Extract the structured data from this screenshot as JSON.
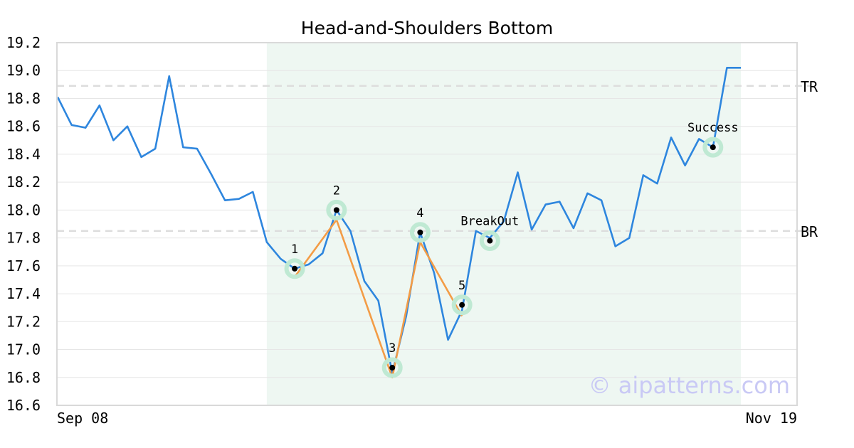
{
  "chart_data": {
    "type": "line",
    "title": "Head-and-Shoulders Bottom",
    "ylim": [
      16.6,
      19.2
    ],
    "y_ticks": [
      "16.6",
      "16.8",
      "17.0",
      "17.2",
      "17.4",
      "17.6",
      "17.8",
      "18.0",
      "18.2",
      "18.4",
      "18.6",
      "18.8",
      "19.0",
      "19.2"
    ],
    "x_tick_labels": [
      "Sep 08",
      "Nov 19"
    ],
    "grid": true,
    "series": [
      {
        "values": [
          18.81,
          18.61,
          18.59,
          18.75,
          18.5,
          18.6,
          18.38,
          18.44,
          18.96,
          18.45,
          18.44,
          18.26,
          18.07,
          18.08,
          18.13,
          17.77,
          17.65,
          17.58,
          17.61,
          17.69,
          18.0,
          17.85,
          17.49,
          17.35,
          16.83,
          17.24,
          17.84,
          17.55,
          17.07,
          17.28,
          17.85,
          17.8,
          17.92,
          18.27,
          17.86,
          18.04,
          18.06,
          17.87,
          18.12,
          18.07,
          17.74,
          17.8,
          18.25,
          18.19,
          18.52,
          18.32,
          18.51,
          18.45,
          19.02,
          19.02
        ],
        "color": "#2e86de"
      }
    ],
    "highlight_range": [
      15,
      49
    ],
    "pattern_line": {
      "color": "#f39c46",
      "points": [
        [
          17,
          17.52
        ],
        [
          20,
          17.93
        ],
        [
          24,
          16.8
        ],
        [
          26,
          17.77
        ],
        [
          29,
          17.24
        ]
      ]
    },
    "levels": [
      {
        "label": "TR",
        "value": 18.89
      },
      {
        "label": "BR",
        "value": 17.85
      }
    ],
    "markers": [
      {
        "label": "1",
        "x": 17,
        "y": 17.58
      },
      {
        "label": "2",
        "x": 20,
        "y": 18.0
      },
      {
        "label": "3",
        "x": 24,
        "y": 16.87
      },
      {
        "label": "4",
        "x": 26,
        "y": 17.84
      },
      {
        "label": "5",
        "x": 29,
        "y": 17.32
      },
      {
        "label": "BreakOut",
        "x": 31,
        "y": 17.78
      },
      {
        "label": "Success",
        "x": 47,
        "y": 18.45
      }
    ]
  },
  "watermark": "© aipatterns.com",
  "colors": {
    "highlight": "#eef7f2",
    "marker_ring": "#bfe9d3",
    "level_line": "#dddddd",
    "grid": "#e6e6e6",
    "frame": "#d9d9d9"
  }
}
